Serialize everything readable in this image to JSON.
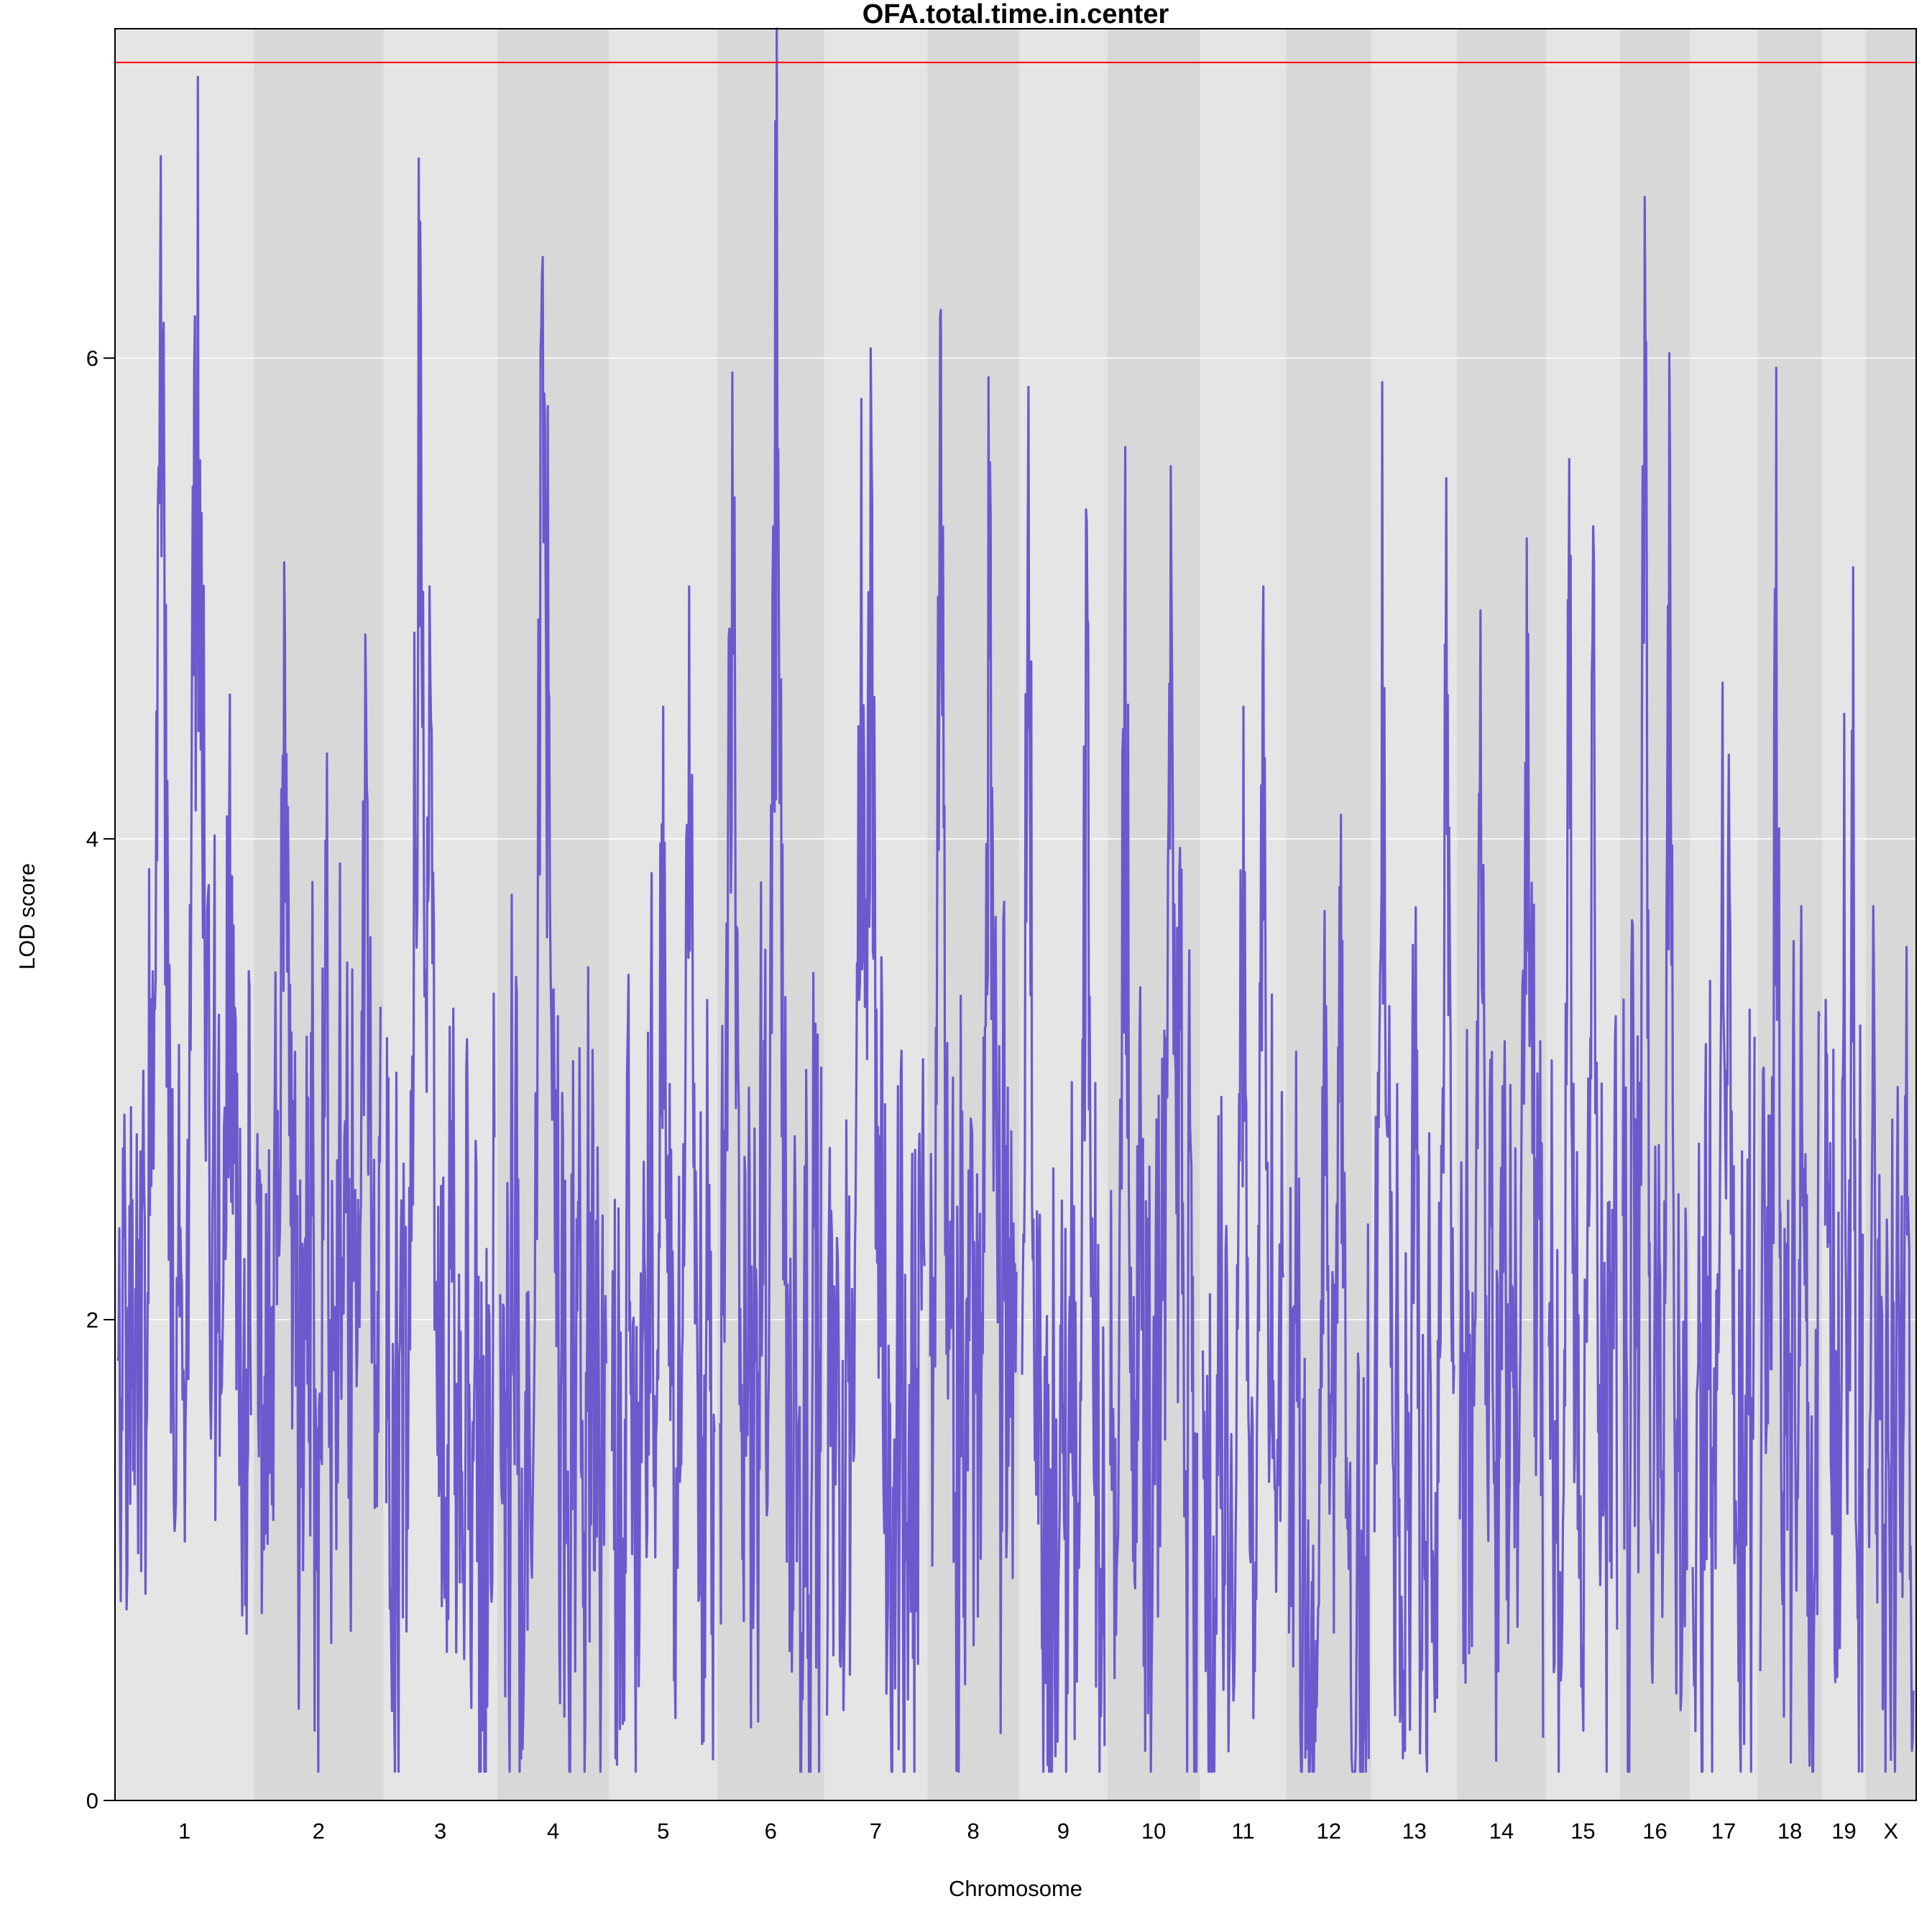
{
  "chart_data": {
    "type": "line",
    "title": "OFA.total.time.in.center",
    "xlabel": "Chromosome",
    "ylabel": "LOD score",
    "ylim": [
      0,
      7.37
    ],
    "yticks": [
      0,
      2,
      4,
      6
    ],
    "grid": true,
    "threshold": 7.23,
    "colors": {
      "line": "#6a5acd",
      "threshold": "#ff0000",
      "band_light": "#e5e5e5",
      "band_dark": "#d8d8d8",
      "grid": "#ffffff"
    },
    "chromosomes": [
      {
        "name": "1",
        "length": 195,
        "peaks": [
          {
            "pos": 0.32,
            "lod": 6.84
          },
          {
            "pos": 0.6,
            "lod": 7.17
          },
          {
            "pos": 0.84,
            "lod": 4.6
          }
        ],
        "base": 1.8
      },
      {
        "name": "2",
        "length": 182,
        "peaks": [
          {
            "pos": 0.22,
            "lod": 5.15
          },
          {
            "pos": 0.88,
            "lod": 4.85
          }
        ],
        "base": 1.9
      },
      {
        "name": "3",
        "length": 160,
        "peaks": [
          {
            "pos": 0.3,
            "lod": 6.83
          },
          {
            "pos": 0.4,
            "lod": 5.05
          }
        ],
        "base": 1.5
      },
      {
        "name": "4",
        "length": 157,
        "peaks": [
          {
            "pos": 0.4,
            "lod": 6.42
          },
          {
            "pos": 0.45,
            "lod": 5.8
          }
        ],
        "base": 1.4
      },
      {
        "name": "5",
        "length": 152,
        "peaks": [
          {
            "pos": 0.75,
            "lod": 5.05
          },
          {
            "pos": 0.5,
            "lod": 4.55
          }
        ],
        "base": 1.7
      },
      {
        "name": "6",
        "length": 150,
        "peaks": [
          {
            "pos": 0.56,
            "lod": 7.37
          },
          {
            "pos": 0.12,
            "lod": 5.94
          }
        ],
        "base": 1.8
      },
      {
        "name": "7",
        "length": 145,
        "peaks": [
          {
            "pos": 0.45,
            "lod": 6.04
          },
          {
            "pos": 0.35,
            "lod": 5.83
          }
        ],
        "base": 1.6
      },
      {
        "name": "8",
        "length": 129,
        "peaks": [
          {
            "pos": 0.12,
            "lod": 6.2
          },
          {
            "pos": 0.68,
            "lod": 5.92
          }
        ],
        "base": 1.9
      },
      {
        "name": "9",
        "length": 124,
        "peaks": [
          {
            "pos": 0.08,
            "lod": 5.88
          },
          {
            "pos": 0.78,
            "lod": 5.37
          }
        ],
        "base": 1.3
      },
      {
        "name": "10",
        "length": 130,
        "peaks": [
          {
            "pos": 0.17,
            "lod": 5.63
          },
          {
            "pos": 0.7,
            "lod": 5.55
          }
        ],
        "base": 1.6
      },
      {
        "name": "11",
        "length": 121,
        "peaks": [
          {
            "pos": 0.75,
            "lod": 5.05
          },
          {
            "pos": 0.5,
            "lod": 4.55
          }
        ],
        "base": 1.3
      },
      {
        "name": "12",
        "length": 120,
        "peaks": [
          {
            "pos": 0.65,
            "lod": 4.1
          },
          {
            "pos": 0.45,
            "lod": 3.7
          }
        ],
        "base": 1.2
      },
      {
        "name": "13",
        "length": 120,
        "peaks": [
          {
            "pos": 0.1,
            "lod": 5.9
          },
          {
            "pos": 0.9,
            "lod": 5.5
          }
        ],
        "base": 1.4
      },
      {
        "name": "14",
        "length": 125,
        "peaks": [
          {
            "pos": 0.8,
            "lod": 5.25
          },
          {
            "pos": 0.25,
            "lod": 4.95
          }
        ],
        "base": 1.6
      },
      {
        "name": "15",
        "length": 104,
        "peaks": [
          {
            "pos": 0.3,
            "lod": 5.58
          },
          {
            "pos": 0.65,
            "lod": 5.3
          }
        ],
        "base": 1.5
      },
      {
        "name": "16",
        "length": 98,
        "peaks": [
          {
            "pos": 0.34,
            "lod": 6.67
          },
          {
            "pos": 0.72,
            "lod": 6.02
          }
        ],
        "base": 1.6
      },
      {
        "name": "17",
        "length": 95,
        "peaks": [
          {
            "pos": 0.48,
            "lod": 4.65
          },
          {
            "pos": 0.58,
            "lod": 4.35
          }
        ],
        "base": 1.5
      },
      {
        "name": "18",
        "length": 91,
        "peaks": [
          {
            "pos": 0.27,
            "lod": 5.96
          },
          {
            "pos": 0.7,
            "lod": 3.72
          }
        ],
        "base": 1.6
      },
      {
        "name": "19",
        "length": 61,
        "peaks": [
          {
            "pos": 0.74,
            "lod": 5.13
          },
          {
            "pos": 0.5,
            "lod": 4.52
          }
        ],
        "base": 1.4
      },
      {
        "name": "X",
        "length": 71,
        "peaks": [
          {
            "pos": 0.1,
            "lod": 3.72
          },
          {
            "pos": 0.85,
            "lod": 3.55
          }
        ],
        "base": 1.4
      }
    ]
  }
}
